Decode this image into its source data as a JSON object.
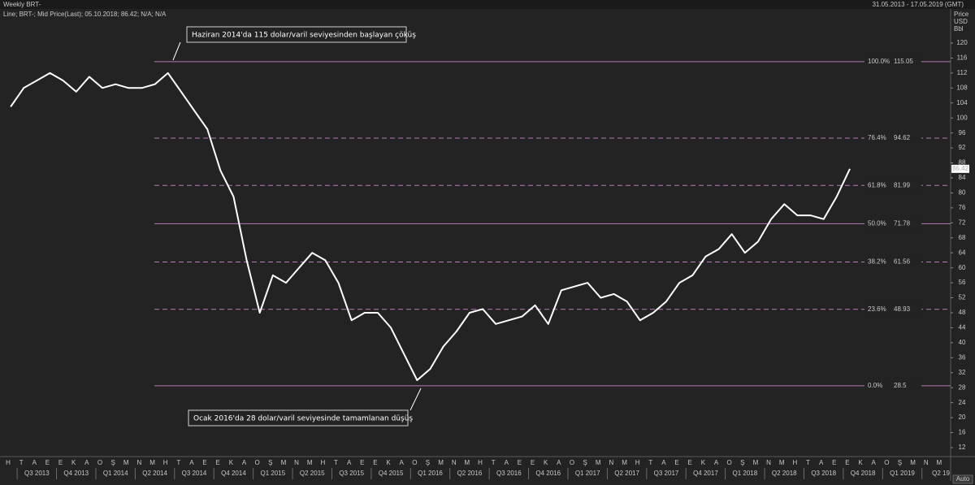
{
  "chart_data": {
    "type": "line",
    "title": "Weekly BRT-",
    "subtitle": "Line; BRT-; Mid Price(Last); 05.10.2018; 86.42; N/A; N/A",
    "date_range": "31.05.2013 - 17.05.2019 (GMT)",
    "y_axis_label": [
      "Price",
      "USD",
      "Bbl"
    ],
    "auto_label": "Auto",
    "ylim": [
      10,
      128
    ],
    "yticks": [
      12,
      16,
      20,
      24,
      28,
      32,
      36,
      40,
      44,
      48,
      52,
      56,
      60,
      64,
      68,
      72,
      76,
      80,
      84,
      88,
      92,
      96,
      100,
      104,
      108,
      112,
      116,
      120
    ],
    "month_labels": [
      "H",
      "T",
      "A",
      "E",
      "E",
      "K",
      "A",
      "O",
      "Ş",
      "M",
      "N",
      "M",
      "H",
      "T",
      "A",
      "E",
      "E",
      "K",
      "A",
      "O",
      "Ş",
      "M",
      "N",
      "M",
      "H",
      "T",
      "A",
      "E",
      "E",
      "K",
      "A",
      "O",
      "Ş",
      "M",
      "N",
      "M",
      "H",
      "T",
      "A",
      "E",
      "E",
      "K",
      "A",
      "O",
      "Ş",
      "M",
      "N",
      "M",
      "H",
      "T",
      "A",
      "E",
      "E",
      "K",
      "A",
      "O",
      "Ş",
      "M",
      "N",
      "M",
      "H",
      "T",
      "A",
      "E",
      "E",
      "K",
      "A",
      "O",
      "Ş",
      "M",
      "N",
      "M"
    ],
    "quarter_labels": [
      "Q3 2013",
      "Q4 2013",
      "Q1 2014",
      "Q2 2014",
      "Q3 2014",
      "Q4 2014",
      "Q1 2015",
      "Q2 2015",
      "Q3 2015",
      "Q4 2015",
      "Q1 2016",
      "Q2 2016",
      "Q3 2016",
      "Q4 2016",
      "Q1 2017",
      "Q2 2017",
      "Q3 2017",
      "Q4 2017",
      "Q1 2018",
      "Q2 2018",
      "Q3 2018",
      "Q4 2018",
      "Q1 2019",
      "Q2 19"
    ],
    "series": [
      {
        "name": "BRT-",
        "color": "#ffffff",
        "x": [
          "2013-06",
          "2013-07",
          "2013-08",
          "2013-09",
          "2013-10",
          "2013-11",
          "2013-12",
          "2014-01",
          "2014-02",
          "2014-03",
          "2014-04",
          "2014-05",
          "2014-06",
          "2014-07",
          "2014-08",
          "2014-09",
          "2014-10",
          "2014-11",
          "2014-12",
          "2015-01",
          "2015-02",
          "2015-03",
          "2015-04",
          "2015-05",
          "2015-06",
          "2015-07",
          "2015-08",
          "2015-09",
          "2015-10",
          "2015-11",
          "2015-12",
          "2016-01",
          "2016-02",
          "2016-03",
          "2016-04",
          "2016-05",
          "2016-06",
          "2016-07",
          "2016-08",
          "2016-09",
          "2016-10",
          "2016-11",
          "2016-12",
          "2017-01",
          "2017-02",
          "2017-03",
          "2017-04",
          "2017-05",
          "2017-06",
          "2017-07",
          "2017-08",
          "2017-09",
          "2017-10",
          "2017-11",
          "2017-12",
          "2018-01",
          "2018-02",
          "2018-03",
          "2018-04",
          "2018-05",
          "2018-06",
          "2018-07",
          "2018-08",
          "2018-09",
          "2018-10"
        ],
        "values": [
          103,
          108,
          110,
          112,
          110,
          107,
          111,
          108,
          109,
          108,
          108,
          109,
          112,
          107,
          102,
          97,
          86,
          79,
          62,
          48,
          58,
          56,
          60,
          64,
          62,
          56,
          46,
          48,
          48,
          44,
          37,
          30,
          33,
          39,
          43,
          48,
          49,
          45,
          46,
          47,
          50,
          45,
          54,
          55,
          56,
          52,
          53,
          51,
          46,
          48,
          51,
          56,
          58,
          63,
          65,
          69,
          64,
          67,
          73,
          77,
          74,
          74,
          73,
          79,
          86.42
        ]
      }
    ],
    "fib_color": "#b87ab8",
    "fib_levels": [
      {
        "label": "100.0%",
        "value": 115.05,
        "style": "solid"
      },
      {
        "label": "76.4%",
        "value": 94.62,
        "style": "dashed"
      },
      {
        "label": "61.8%",
        "value": 81.99,
        "style": "dashed"
      },
      {
        "label": "50.0%",
        "value": 71.78,
        "style": "solid"
      },
      {
        "label": "38.2%",
        "value": 61.56,
        "style": "dashed"
      },
      {
        "label": "23.6%",
        "value": 48.93,
        "style": "dashed"
      },
      {
        "label": "0.0%",
        "value": 28.5,
        "style": "solid"
      }
    ],
    "annotations": [
      "Haziran 2014'da 115 dolar/varil seviyesinden başlayan çöküş",
      "Ocak 2016'da 28 dolar/varil seviyesinde tamamlanan düşüş"
    ]
  }
}
